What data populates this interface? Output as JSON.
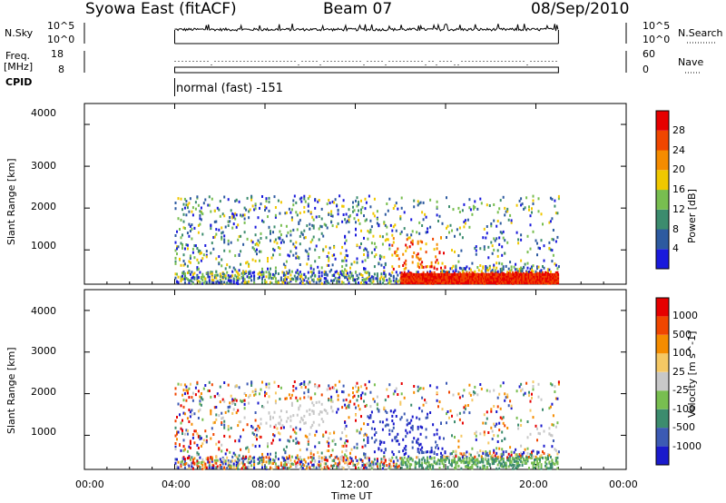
{
  "header": {
    "station": "Syowa East (fitACF)",
    "beam": "Beam 07",
    "date": "08/Sep/2010"
  },
  "strips": {
    "nsky_label": "N.Sky",
    "nsearch_label": "N.Search",
    "nsky_ticks": [
      "10^5",
      "10^0"
    ],
    "freq_label": "Freq.",
    "freq_unit": "[MHz]",
    "freq_ticks": [
      "18",
      "8"
    ],
    "nave_label": "Nave",
    "nave_ticks": [
      "60",
      "0"
    ],
    "cpid_label": "CPID",
    "cpid_value": "normal (fast) -151"
  },
  "colors": {
    "power": [
      "#1a1adc",
      "#2d5aa0",
      "#3c8c6e",
      "#78be50",
      "#f0c800",
      "#f58c00",
      "#f04600",
      "#e60000"
    ],
    "velocity": [
      "#e60000",
      "#f04600",
      "#f58c00",
      "#f5c864",
      "#c8c8c8",
      "#78be50",
      "#3c8c6e",
      "#3c5ab4",
      "#1a1acc"
    ]
  },
  "chart_data": [
    {
      "type": "heatmap",
      "title": "Power",
      "ylabel": "Slant Range [km]",
      "xlabel": "Time UT",
      "x_ticks": [
        "00:00",
        "04:00",
        "08:00",
        "12:00",
        "16:00",
        "20:00",
        "00:00"
      ],
      "y_ticks": [
        "1000",
        "2000",
        "3000",
        "4000"
      ],
      "ylim": [
        180,
        4500
      ],
      "colorbar_label": "Power [dB]",
      "colorbar_ticks": [
        "4",
        "8",
        "12",
        "16",
        "20",
        "24",
        "28"
      ],
      "colorbar_range": [
        0,
        32
      ],
      "data_coverage_hours": [
        4,
        21
      ]
    },
    {
      "type": "heatmap",
      "title": "Velocity",
      "ylabel": "Slant Range [km]",
      "xlabel": "Time UT",
      "x_ticks": [
        "00:00",
        "04:00",
        "08:00",
        "12:00",
        "16:00",
        "20:00",
        "00:00"
      ],
      "y_ticks": [
        "1000",
        "2000",
        "3000",
        "4000"
      ],
      "ylim": [
        180,
        4500
      ],
      "colorbar_label": "Velocity [m s^-1]",
      "colorbar_ticks": [
        "1000",
        "500",
        "100",
        "25",
        "-25",
        "-100",
        "-500",
        "-1000"
      ],
      "data_coverage_hours": [
        4,
        21
      ]
    }
  ]
}
